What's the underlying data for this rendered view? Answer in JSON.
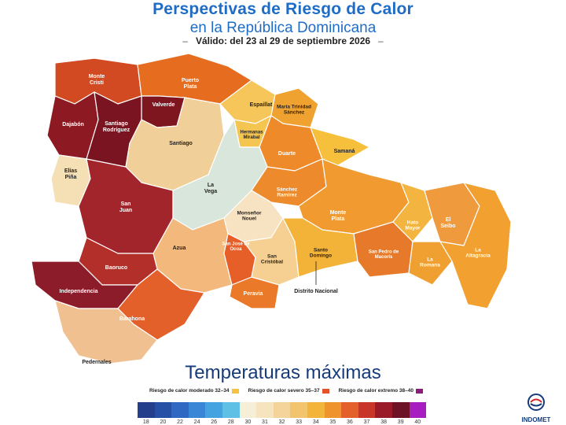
{
  "header": {
    "title": "Perspectivas de Riesgo de Calor",
    "subtitle": "en la República Dominicana",
    "validity": "Válido: del 23 al 29 de septiembre 2026"
  },
  "provinces": [
    {
      "name": "Monte Cristi",
      "color": "#d24a22",
      "label_color": "#ffffff"
    },
    {
      "name": "Puerto Plata",
      "color": "#e66c20",
      "label_color": "#ffffff"
    },
    {
      "name": "Valverde",
      "color": "#7e1620",
      "label_color": "#ffffff"
    },
    {
      "name": "Dajabón",
      "color": "#8d1a22",
      "label_color": "#ffffff"
    },
    {
      "name": "Santiago Rodríguez",
      "color": "#7a1420",
      "label_color": "#ffffff"
    },
    {
      "name": "Santiago",
      "color": "#f1cf98",
      "label_color": "#222222"
    },
    {
      "name": "Espaillat",
      "color": "#f6c65a",
      "label_color": "#222222"
    },
    {
      "name": "María Trinidad Sánchez",
      "color": "#f0a230",
      "label_color": "#222222"
    },
    {
      "name": "Hermanas Mirabal",
      "color": "#f5c552",
      "label_color": "#222222"
    },
    {
      "name": "Duarte",
      "color": "#ee8a2a",
      "label_color": "#ffffff"
    },
    {
      "name": "Samaná",
      "color": "#f6c03c",
      "label_color": "#222222"
    },
    {
      "name": "Elías Piña",
      "color": "#f5dfb4",
      "label_color": "#222222"
    },
    {
      "name": "San Juan",
      "color": "#a1252a",
      "label_color": "#ffffff"
    },
    {
      "name": "La Vega",
      "color": "#d9e6dc",
      "label_color": "#222222"
    },
    {
      "name": "Sánchez Ramírez",
      "color": "#ec8a2c",
      "label_color": "#ffffff"
    },
    {
      "name": "Monte Plata",
      "color": "#f09a30",
      "label_color": "#ffffff"
    },
    {
      "name": "Monseñor Nouel",
      "color": "#f7e2c2",
      "label_color": "#222222"
    },
    {
      "name": "Hato Mayor",
      "color": "#f3b440",
      "label_color": "#ffffff"
    },
    {
      "name": "El Seibo",
      "color": "#ef9a3c",
      "label_color": "#ffffff"
    },
    {
      "name": "Azua",
      "color": "#f2b87c",
      "label_color": "#222222"
    },
    {
      "name": "San José de Ocoa",
      "color": "#e65e28",
      "label_color": "#ffffff"
    },
    {
      "name": "San Cristóbal",
      "color": "#f6d092",
      "label_color": "#222222"
    },
    {
      "name": "Santo Domingo",
      "color": "#f3b238",
      "label_color": "#222222"
    },
    {
      "name": "San Pedro de Macorís",
      "color": "#e77a2a",
      "label_color": "#ffffff"
    },
    {
      "name": "La Romana",
      "color": "#f0a030",
      "label_color": "#ffffff"
    },
    {
      "name": "La Altagracia",
      "color": "#f2a030",
      "label_color": "#ffffff"
    },
    {
      "name": "Baoruco",
      "color": "#b3302a",
      "label_color": "#ffffff"
    },
    {
      "name": "Independencia",
      "color": "#8c1c2a",
      "label_color": "#ffffff"
    },
    {
      "name": "Peravia",
      "color": "#ea7a2a",
      "label_color": "#ffffff"
    },
    {
      "name": "Barahona",
      "color": "#e4602a",
      "label_color": "#ffffff"
    },
    {
      "name": "Pedernales",
      "color": "#f0c090",
      "label_color": "#222222"
    }
  ],
  "callout": "Distrito Nacional",
  "legend": {
    "title": "Temperaturas máximas",
    "risk": [
      {
        "label": "Riesgo de calor moderado 32–34",
        "color": "#f6c242"
      },
      {
        "label": "Riesgo de calor severo 35–37",
        "color": "#e4522a"
      },
      {
        "label": "Riesgo de calor extremo  38–40",
        "color": "#8a1d7a"
      }
    ],
    "scale": [
      {
        "value": "18",
        "color": "#253e8c"
      },
      {
        "value": "20",
        "color": "#2650a6"
      },
      {
        "value": "22",
        "color": "#2e68c2"
      },
      {
        "value": "24",
        "color": "#3a86d6"
      },
      {
        "value": "26",
        "color": "#45a3e0"
      },
      {
        "value": "28",
        "color": "#5fc0e6"
      },
      {
        "value": "30",
        "color": "#f5efd8"
      },
      {
        "value": "31",
        "color": "#f5e4be"
      },
      {
        "value": "32",
        "color": "#f4d49a"
      },
      {
        "value": "33",
        "color": "#f3c46e"
      },
      {
        "value": "34",
        "color": "#f3b43c"
      },
      {
        "value": "35",
        "color": "#ef942c"
      },
      {
        "value": "36",
        "color": "#e4602a"
      },
      {
        "value": "37",
        "color": "#c8362a"
      },
      {
        "value": "38",
        "color": "#9a1a2a"
      },
      {
        "value": "39",
        "color": "#6e1226"
      },
      {
        "value": "40",
        "color": "#a61ec0"
      }
    ]
  },
  "logo": {
    "text": "INDOMET"
  }
}
